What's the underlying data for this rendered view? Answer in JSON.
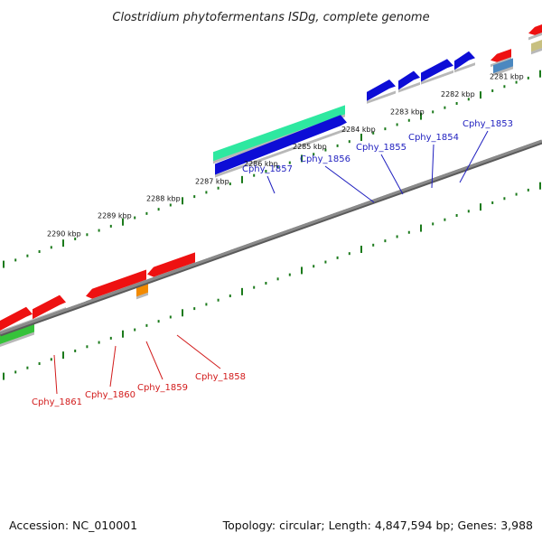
{
  "title": "Clostridium phytofermentans ISDg, complete genome",
  "footer": {
    "accession": "Accession: NC_010001",
    "summary": "Topology: circular; Length: 4,847,594 bp; Genes: 3,988"
  },
  "colors": {
    "backbone": "#8a8a8a",
    "tick": "#1b7a1b",
    "forward_label": "#1f1fbf",
    "reverse_label": "#d21b1b",
    "cds_forward": "#0d0dd6",
    "cds_reverse": "#ee1111",
    "rna_teal": "#2ee8a0",
    "other_green": "#36c23a",
    "other_orange": "#f28a00",
    "other_olive": "#c8c080",
    "other_steel": "#4b88c0"
  },
  "kbp_labels": [
    "2290 kbp",
    "2289 kbp",
    "2288 kbp",
    "2287 kbp",
    "2286 kbp",
    "2285 kbp",
    "2284 kbp",
    "2283 kbp",
    "2282 kbp",
    "2281 kbp"
  ],
  "gene_labels_top": [
    "Cphy_1857",
    "Cphy_1856",
    "Cphy_1855",
    "Cphy_1854",
    "Cphy_1853"
  ],
  "gene_labels_bottom": [
    "Cphy_1861",
    "Cphy_1860",
    "Cphy_1859",
    "Cphy_1858"
  ]
}
